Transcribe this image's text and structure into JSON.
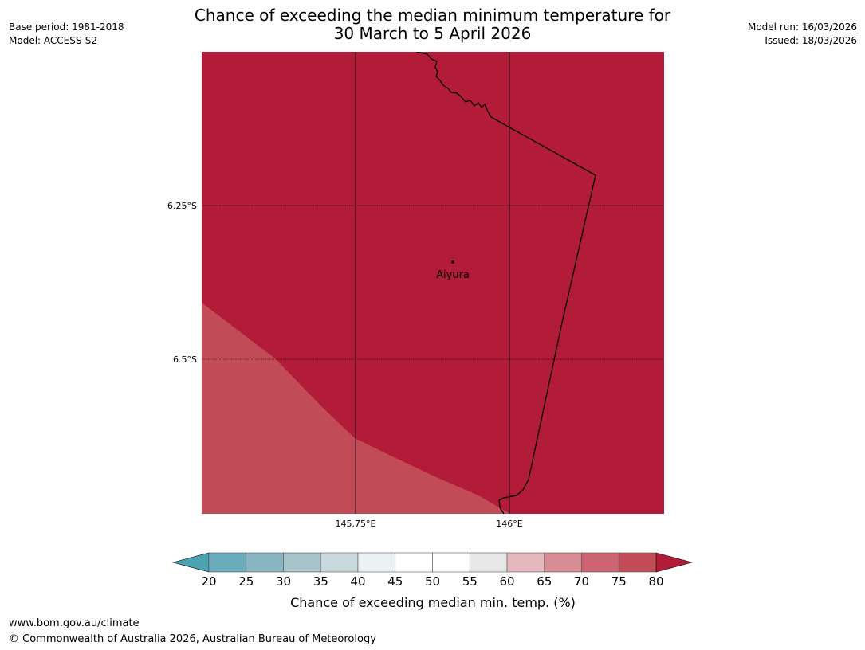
{
  "header": {
    "title_line1": "Chance of exceeding the median minimum temperature for",
    "title_line2": "30 March to 5 April 2026",
    "base_period": "Base period: 1981-2018",
    "model": "Model: ACCESS-S2",
    "model_run": "Model run: 16/03/2026",
    "issued": "Issued: 18/03/2026"
  },
  "map": {
    "lat_labels": [
      "6.25°S",
      "6.5°S"
    ],
    "lon_labels": [
      "145.75°E",
      "146°E"
    ],
    "place": {
      "name": "Aiyura"
    },
    "colors": {
      "band_75_80": "#c14b56",
      "above_80": "#b21c39",
      "border": "#000000"
    }
  },
  "colorbar": {
    "ticks": [
      "20",
      "25",
      "30",
      "35",
      "40",
      "45",
      "50",
      "55",
      "60",
      "65",
      "70",
      "75",
      "80"
    ],
    "label": "Chance of exceeding median min. temp. (%)",
    "colors": {
      "below_20": "#4ba2b3",
      "bins": [
        "#6aacbc",
        "#89b5c3",
        "#a7c4ca",
        "#c8d8dc",
        "#eaf2f4",
        "#ffffff",
        "#ffffff",
        "#e8e8e8",
        "#e4b8bc",
        "#d68d94",
        "#cb6572",
        "#c14b56"
      ],
      "above_80": "#b21c39"
    }
  },
  "footer": {
    "url": "www.bom.gov.au/climate",
    "copyright": "© Commonwealth of Australia 2026, Australian Bureau of Meteorology"
  }
}
